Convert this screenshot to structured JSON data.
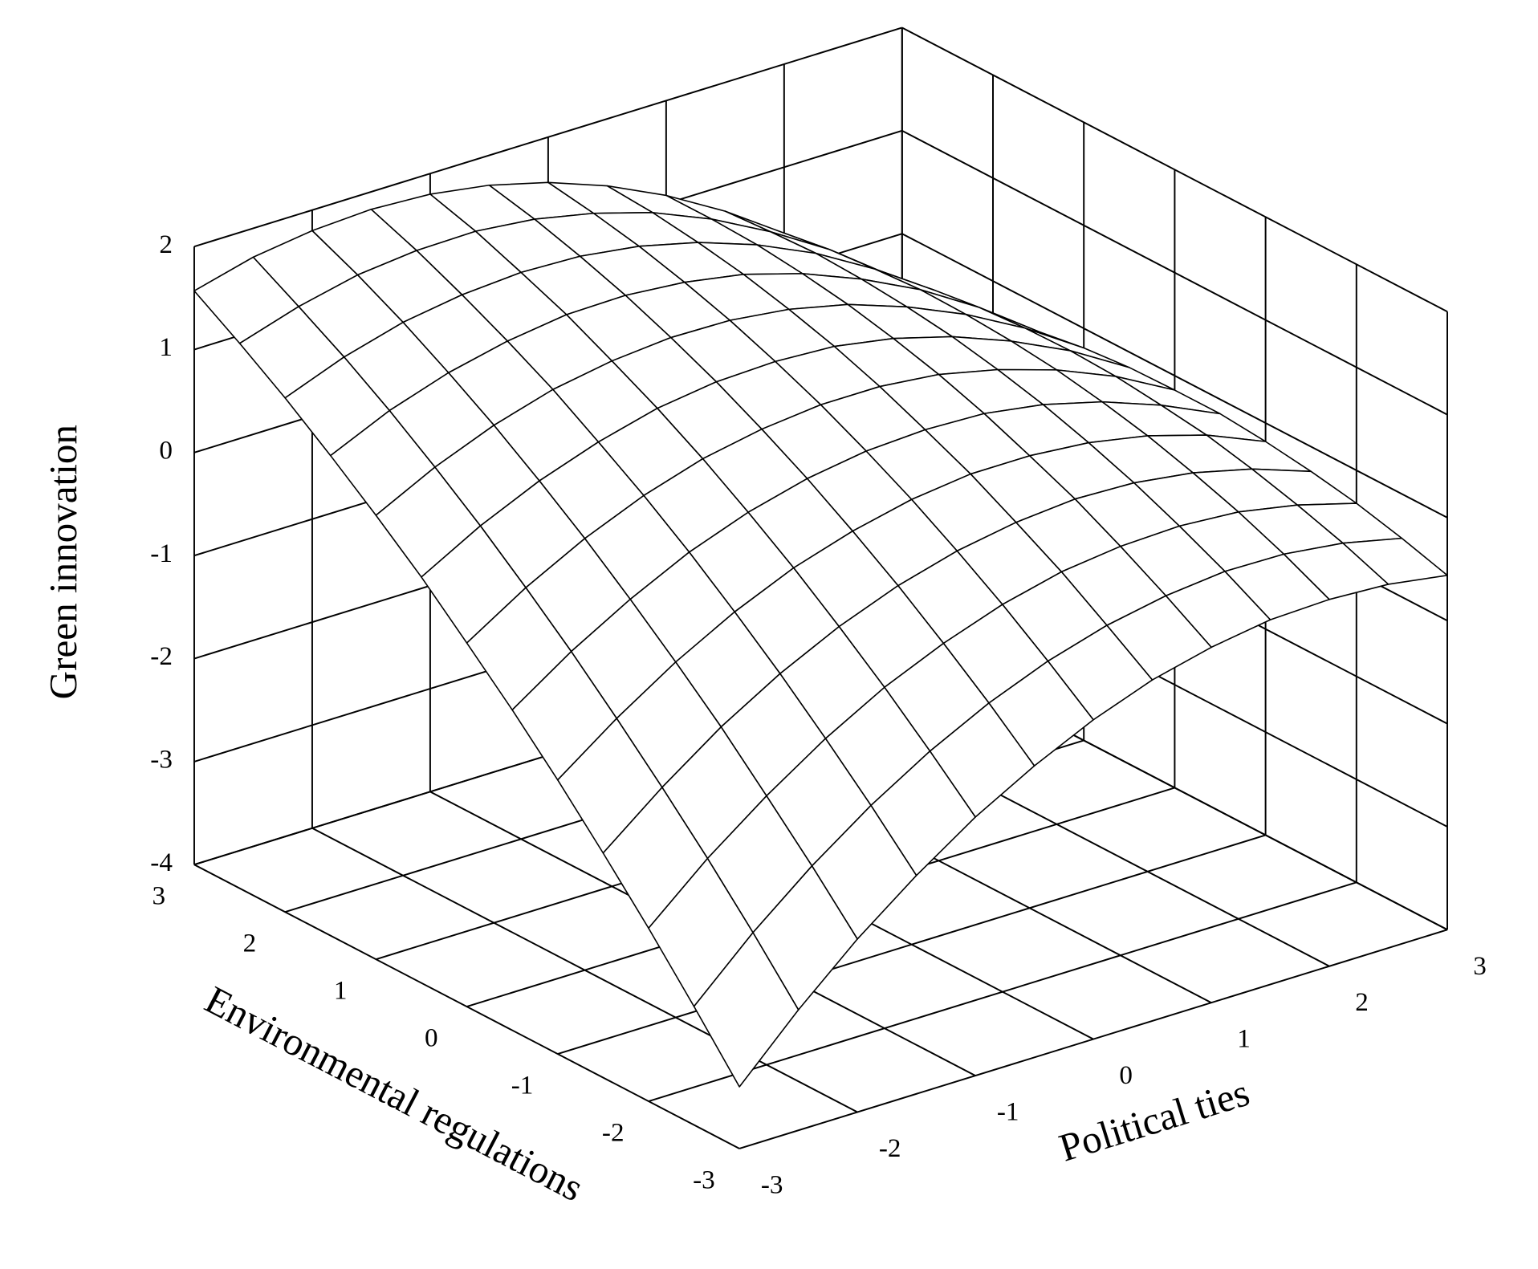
{
  "chart_data": {
    "type": "surface",
    "xlabel": "Political ties",
    "ylabel": "Environmental regulations",
    "zlabel": "Green innovation",
    "x": [
      -3,
      -2.5,
      -2,
      -1.5,
      -1,
      -0.5,
      0,
      0.5,
      1,
      1.5,
      2,
      2.5,
      3
    ],
    "y": [
      -3,
      -2.5,
      -2,
      -1.5,
      -1,
      -0.5,
      0,
      0.5,
      1,
      1.5,
      2,
      2.5,
      3
    ],
    "z": [
      [
        -3.4,
        -2.83,
        -2.32,
        -1.88,
        -1.49,
        -1.17,
        -0.9,
        -0.69,
        -0.55,
        -0.46,
        -0.44,
        -0.47,
        -0.56
      ],
      [
        -2.85,
        -2.31,
        -1.84,
        -1.43,
        -1.08,
        -0.79,
        -0.56,
        -0.39,
        -0.28,
        -0.22,
        -0.23,
        -0.3,
        -0.43
      ],
      [
        -2.32,
        -1.82,
        -1.39,
        -1.01,
        -0.69,
        -0.44,
        -0.24,
        -0.1,
        -0.03,
        -0.01,
        -0.05,
        -0.16,
        -0.32
      ],
      [
        -1.82,
        -1.36,
        -0.95,
        -0.61,
        -0.33,
        -0.11,
        0.05,
        0.15,
        0.2,
        0.18,
        0.1,
        -0.04,
        -0.24
      ],
      [
        -1.34,
        -0.92,
        -0.55,
        -0.24,
        0.01,
        0.19,
        0.32,
        0.39,
        0.39,
        0.34,
        0.23,
        0.06,
        -0.18
      ],
      [
        -0.89,
        -0.5,
        -0.17,
        0.11,
        0.32,
        0.47,
        0.56,
        0.59,
        0.57,
        0.48,
        0.33,
        0.12,
        -0.14
      ],
      [
        -0.47,
        -0.11,
        0.19,
        0.43,
        0.61,
        0.72,
        0.78,
        0.78,
        0.72,
        0.59,
        0.41,
        0.17,
        -0.14
      ],
      [
        -0.06,
        0.26,
        0.52,
        0.72,
        0.87,
        0.95,
        0.97,
        0.94,
        0.84,
        0.68,
        0.46,
        0.19,
        -0.15
      ],
      [
        0.31,
        0.6,
        0.83,
        1.0,
        1.1,
        1.15,
        1.14,
        1.07,
        0.94,
        0.74,
        0.49,
        0.18,
        -0.19
      ],
      [
        0.66,
        0.92,
        1.11,
        1.24,
        1.32,
        1.33,
        1.28,
        1.18,
        1.01,
        0.78,
        0.5,
        0.15,
        -0.26
      ],
      [
        0.99,
        1.21,
        1.37,
        1.46,
        1.5,
        1.48,
        1.4,
        1.26,
        1.06,
        0.8,
        0.47,
        0.09,
        -0.35
      ],
      [
        1.29,
        1.47,
        1.6,
        1.66,
        1.67,
        1.61,
        1.49,
        1.32,
        1.08,
        0.78,
        0.43,
        0.01,
        -0.47
      ],
      [
        1.57,
        1.72,
        1.8,
        1.83,
        1.8,
        1.71,
        1.56,
        1.35,
        1.08,
        0.75,
        0.36,
        -0.1,
        -0.61
      ]
    ],
    "xlim": [
      -3,
      3
    ],
    "ylim": [
      -3,
      3
    ],
    "zlim": [
      -4,
      2
    ],
    "xticks": [
      -3,
      -2,
      -1,
      0,
      1,
      2,
      3
    ],
    "yticks": [
      -3,
      -2,
      -1,
      0,
      1,
      2,
      3
    ],
    "zticks": [
      -4,
      -3,
      -2,
      -1,
      0,
      1,
      2
    ],
    "grid": true,
    "color": "#000000"
  }
}
